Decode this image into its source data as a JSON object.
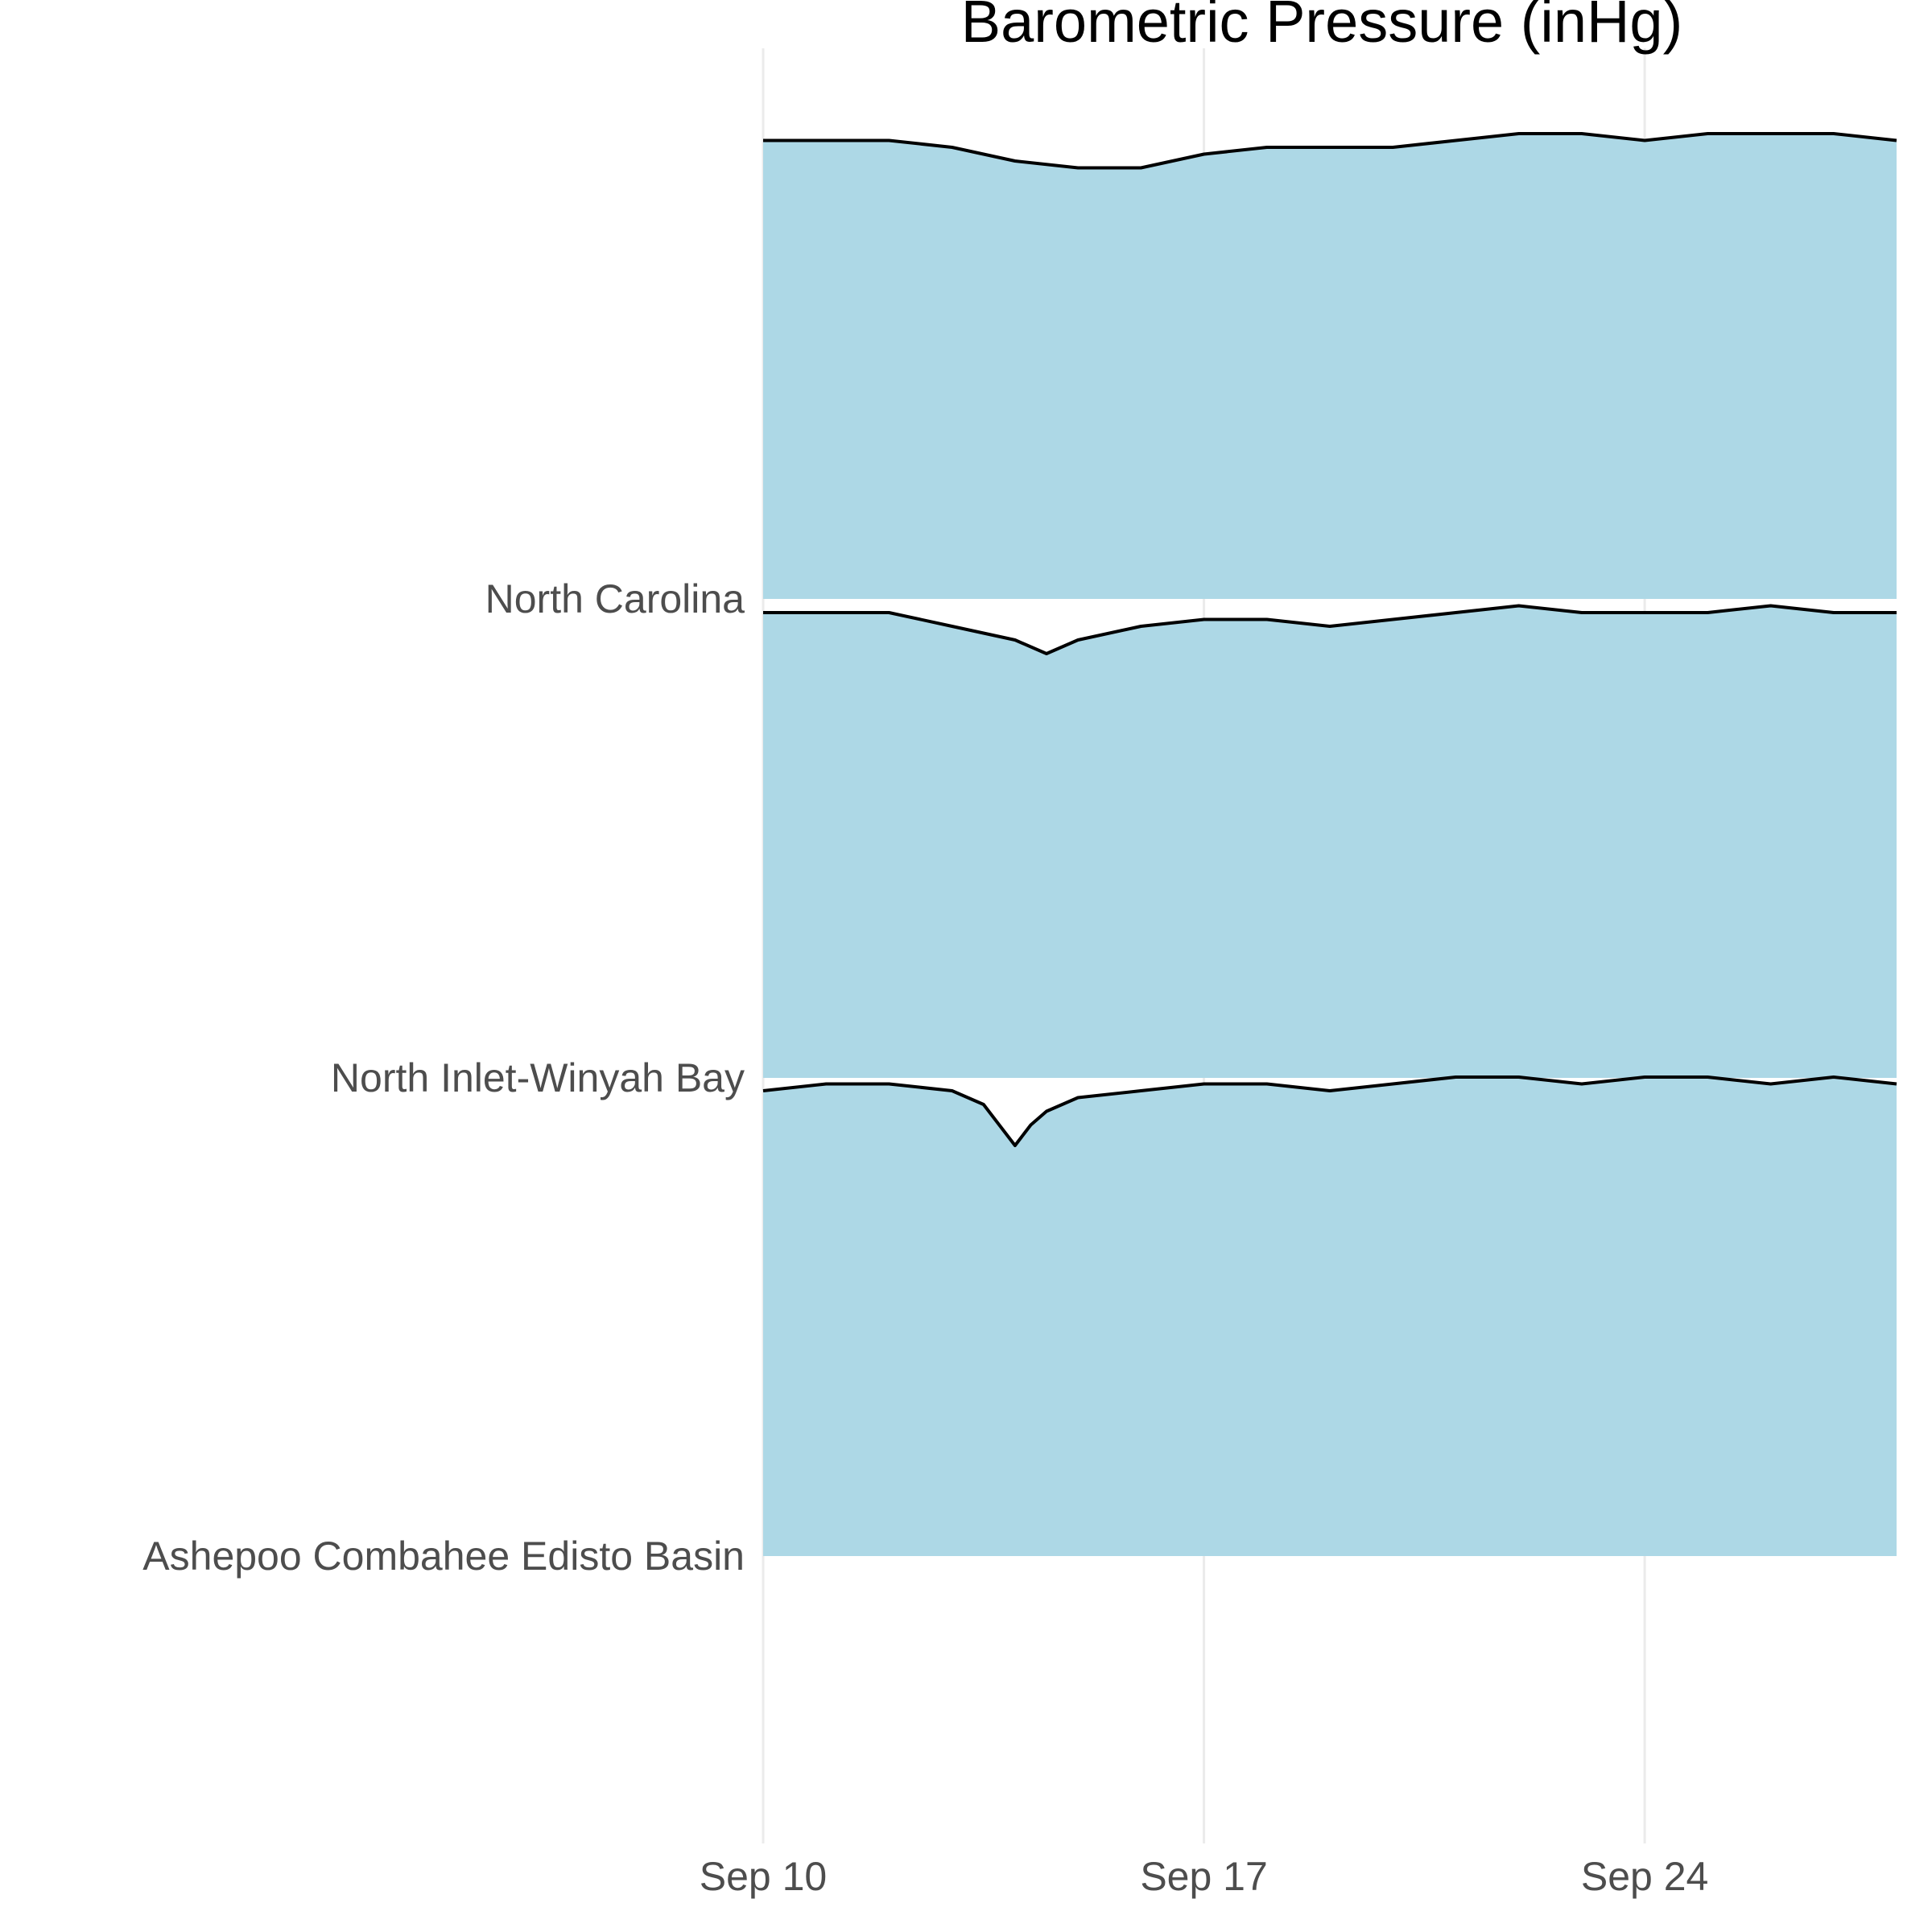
{
  "chart_data": {
    "type": "area",
    "title": "Barometric Pressure (inHg)",
    "xlabel": "",
    "ylabel": "",
    "fill_color": "#add8e6",
    "line_color": "#000000",
    "grid": true,
    "legend": "none",
    "x_ticks": [
      "Sep 10",
      "Sep 17",
      "Sep 24"
    ],
    "x_tick_values": [
      "2023-09-10",
      "2023-09-17",
      "2023-09-24"
    ],
    "x_range": [
      "2023-09-10",
      "2023-09-28"
    ],
    "categories": [
      "Ashepoo Combahee Edisto Basin",
      "North Inlet-Winyah Bay",
      "North Carolina"
    ],
    "y_range": [
      29.5,
      30.2
    ],
    "series": [
      {
        "name": "Ashepoo Combahee Edisto Basin",
        "x": [
          "2023-09-10",
          "2023-09-11",
          "2023-09-12",
          "2023-09-13",
          "2023-09-13T12:00",
          "2023-09-14",
          "2023-09-14T06:00",
          "2023-09-14T12:00",
          "2023-09-15",
          "2023-09-16",
          "2023-09-17",
          "2023-09-18",
          "2023-09-19",
          "2023-09-20",
          "2023-09-21",
          "2023-09-22",
          "2023-09-23",
          "2023-09-24",
          "2023-09-25",
          "2023-09-26",
          "2023-09-27",
          "2023-09-28"
        ],
        "values": [
          30.18,
          30.19,
          30.19,
          30.18,
          30.16,
          30.1,
          30.13,
          30.15,
          30.17,
          30.18,
          30.19,
          30.19,
          30.18,
          30.19,
          30.2,
          30.2,
          30.19,
          30.2,
          30.2,
          30.19,
          30.2,
          30.19
        ]
      },
      {
        "name": "North Inlet-Winyah Bay",
        "x": [
          "2023-09-10",
          "2023-09-11",
          "2023-09-12",
          "2023-09-13",
          "2023-09-14",
          "2023-09-14T12:00",
          "2023-09-15",
          "2023-09-16",
          "2023-09-17",
          "2023-09-18",
          "2023-09-19",
          "2023-09-20",
          "2023-09-21",
          "2023-09-22",
          "2023-09-23",
          "2023-09-24",
          "2023-09-25",
          "2023-09-26",
          "2023-09-27",
          "2023-09-28"
        ],
        "values": [
          30.18,
          30.18,
          30.18,
          30.16,
          30.14,
          30.12,
          30.14,
          30.16,
          30.17,
          30.17,
          30.16,
          30.17,
          30.18,
          30.19,
          30.18,
          30.18,
          30.18,
          30.19,
          30.18,
          30.18
        ]
      },
      {
        "name": "North Carolina",
        "x": [
          "2023-09-10",
          "2023-09-11",
          "2023-09-12",
          "2023-09-13",
          "2023-09-14",
          "2023-09-15",
          "2023-09-16",
          "2023-09-17",
          "2023-09-18",
          "2023-09-19",
          "2023-09-20",
          "2023-09-21",
          "2023-09-22",
          "2023-09-23",
          "2023-09-24",
          "2023-09-25",
          "2023-09-26",
          "2023-09-27",
          "2023-09-28"
        ],
        "values": [
          30.17,
          30.17,
          30.17,
          30.16,
          30.14,
          30.13,
          30.13,
          30.15,
          30.16,
          30.16,
          30.16,
          30.17,
          30.18,
          30.18,
          30.17,
          30.18,
          30.18,
          30.18,
          30.17
        ]
      }
    ]
  }
}
